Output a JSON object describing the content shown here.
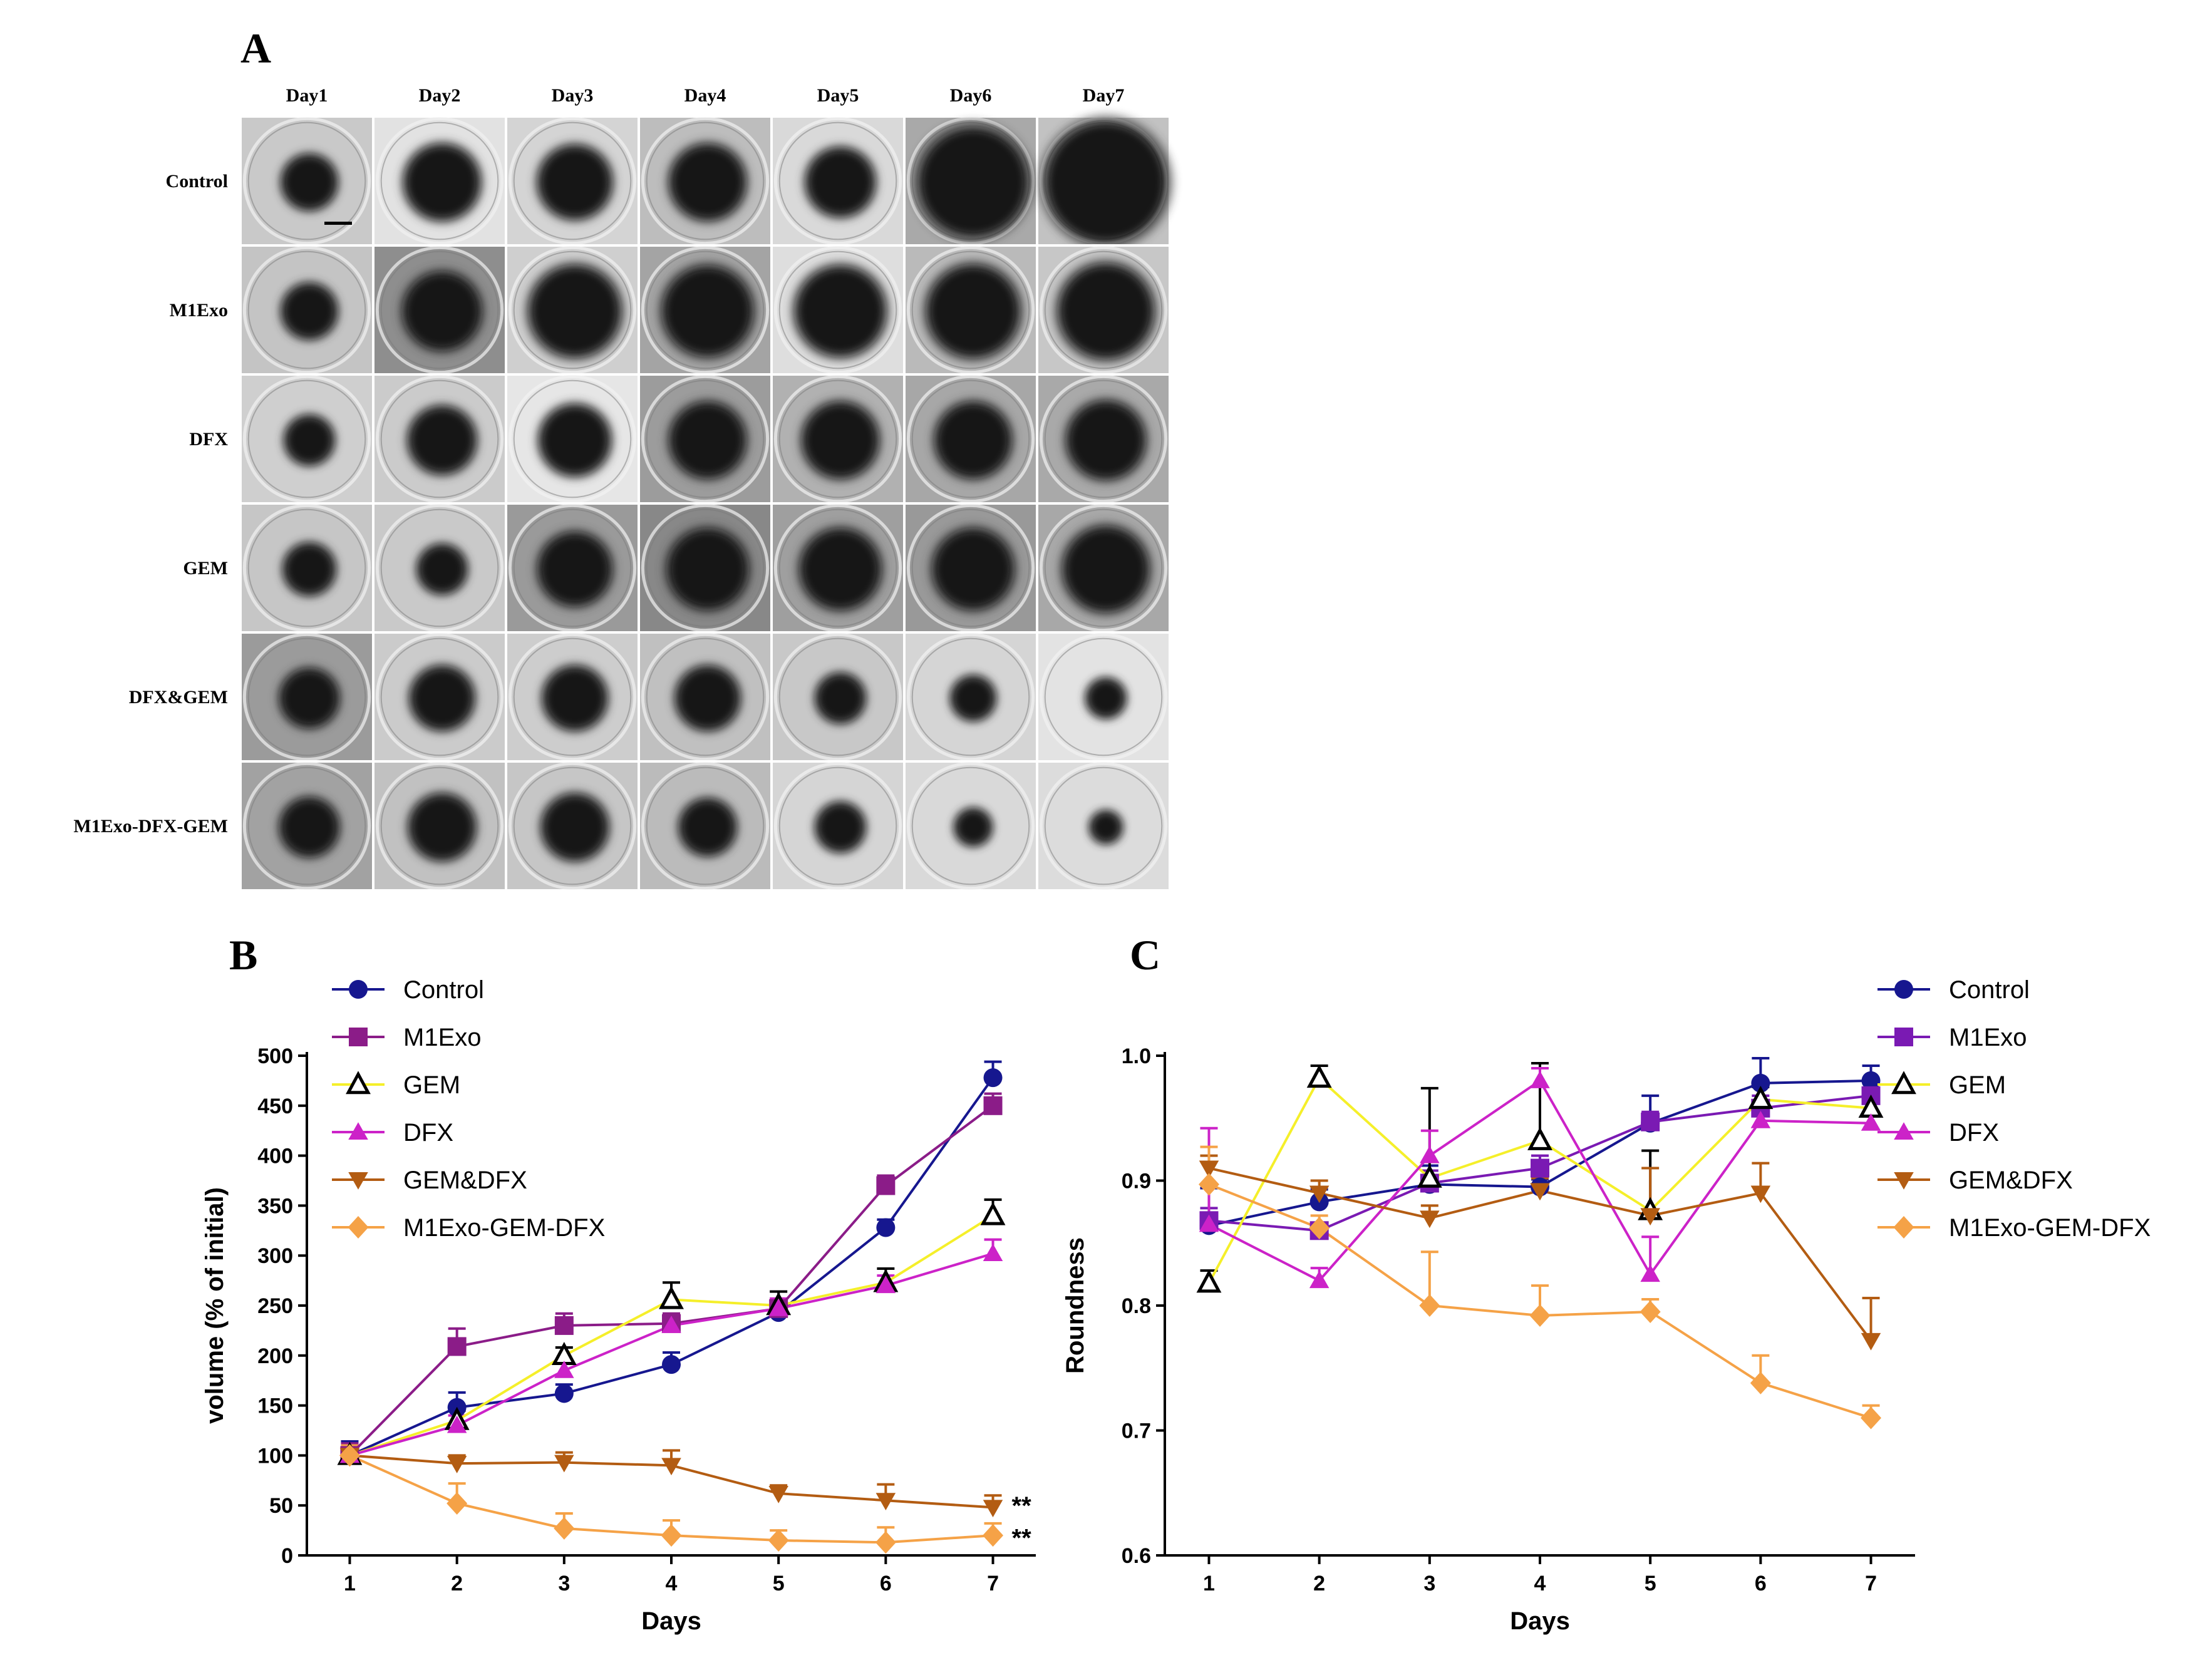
{
  "panels": {
    "a_label": "A",
    "b_label": "B",
    "c_label": "C"
  },
  "image_grid": {
    "days": [
      "Day1",
      "Day2",
      "Day3",
      "Day4",
      "Day5",
      "Day6",
      "Day7"
    ],
    "groups": [
      "Control",
      "M1Exo",
      "DFX",
      "GEM",
      "DFX&GEM",
      "M1Exo-DFX-GEM"
    ],
    "relative_spheroid_size": [
      [
        0.45,
        0.62,
        0.6,
        0.62,
        0.56,
        0.9,
        1.0
      ],
      [
        0.45,
        0.64,
        0.75,
        0.74,
        0.74,
        0.76,
        0.78
      ],
      [
        0.4,
        0.55,
        0.58,
        0.62,
        0.62,
        0.62,
        0.64
      ],
      [
        0.42,
        0.4,
        0.6,
        0.66,
        0.66,
        0.66,
        0.7
      ],
      [
        0.48,
        0.52,
        0.52,
        0.52,
        0.4,
        0.36,
        0.32
      ],
      [
        0.48,
        0.54,
        0.54,
        0.46,
        0.4,
        0.3,
        0.26
      ]
    ],
    "background_tone": [
      [
        "#c9c9c9",
        "#e2e2e2",
        "#d4d4d4",
        "#bdbdbd",
        "#d9d9d9",
        "#a9a9a9",
        "#c2c2c2"
      ],
      [
        "#c4c4c4",
        "#8e8e8e",
        "#cfcfcf",
        "#a4a4a4",
        "#dedede",
        "#bababa",
        "#c7c7c7"
      ],
      [
        "#cfcfcf",
        "#cbcbcb",
        "#e6e6e6",
        "#9c9c9c",
        "#b1b1b1",
        "#a7a7a7",
        "#a9a9a9"
      ],
      [
        "#c6c6c6",
        "#c9c9c9",
        "#9a9a9a",
        "#888888",
        "#9f9f9f",
        "#999999",
        "#a8a8a8"
      ],
      [
        "#9b9b9b",
        "#cbcbcb",
        "#cdcdcd",
        "#c0c0c0",
        "#c8c8c8",
        "#d5d5d5",
        "#e3e3e3"
      ],
      [
        "#a2a2a2",
        "#c1c1c1",
        "#c6c6c6",
        "#bbbbbb",
        "#d5d5d5",
        "#d9d9d9",
        "#dcdcdc"
      ]
    ]
  },
  "chart_data": [
    {
      "type": "line",
      "panel": "B",
      "xlabel": "Days",
      "ylabel": "volume (% of initial)",
      "x": [
        1,
        2,
        3,
        4,
        5,
        6,
        7
      ],
      "xlim": [
        0.6,
        7.4
      ],
      "ylim": [
        0,
        500
      ],
      "yticks": [
        0,
        50,
        100,
        150,
        200,
        250,
        300,
        350,
        400,
        450,
        500
      ],
      "legend_position": "top-left",
      "series": [
        {
          "name": "Control",
          "marker": "circle",
          "color": "#16178f",
          "values": [
            100,
            148,
            162,
            191,
            243,
            328,
            478
          ],
          "err": [
            14,
            15,
            9,
            12,
            6,
            8,
            16
          ]
        },
        {
          "name": "M1Exo",
          "marker": "square",
          "color": "#8b1c88",
          "values": [
            100,
            209,
            230,
            232,
            247,
            370,
            450
          ],
          "err": [
            12,
            18,
            12,
            10,
            8,
            10,
            12
          ]
        },
        {
          "name": "GEM",
          "marker": "triangle-open",
          "color": "#f5ef2a",
          "values": [
            100,
            135,
            200,
            256,
            250,
            273,
            340
          ],
          "err": [
            10,
            10,
            8,
            17,
            14,
            14,
            16
          ]
        },
        {
          "name": "DFX",
          "marker": "triangle",
          "color": "#cc22c8",
          "values": [
            100,
            130,
            185,
            230,
            247,
            270,
            302
          ],
          "err": [
            8,
            10,
            10,
            10,
            10,
            10,
            14
          ]
        },
        {
          "name": "GEM&DFX",
          "marker": "triangle-down",
          "color": "#b35c12",
          "values": [
            100,
            92,
            93,
            90,
            62,
            55,
            48
          ],
          "err": [
            8,
            8,
            10,
            15,
            8,
            16,
            12
          ]
        },
        {
          "name": "M1Exo-GEM-DFX",
          "marker": "diamond",
          "color": "#f5a247",
          "values": [
            100,
            52,
            27,
            20,
            15,
            13,
            20
          ],
          "err": [
            10,
            20,
            15,
            15,
            10,
            15,
            12
          ]
        }
      ],
      "annotations": [
        {
          "text": "**",
          "x": 7,
          "y": 50
        },
        {
          "text": "**",
          "x": 7,
          "y": 18
        }
      ]
    },
    {
      "type": "line",
      "panel": "C",
      "xlabel": "Days",
      "ylabel": "Roundness",
      "x": [
        1,
        2,
        3,
        4,
        5,
        6,
        7
      ],
      "xlim": [
        0.6,
        7.4
      ],
      "ylim": [
        0.6,
        1.0
      ],
      "yticks": [
        0.6,
        0.7,
        0.8,
        0.9,
        1.0
      ],
      "legend_position": "top-right",
      "series": [
        {
          "name": "Control",
          "marker": "circle",
          "color": "#16178f",
          "values": [
            0.864,
            0.883,
            0.897,
            0.895,
            0.946,
            0.978,
            0.98
          ],
          "err": [
            0.03,
            0.01,
            0.015,
            0.006,
            0.022,
            0.02,
            0.012
          ]
        },
        {
          "name": "M1Exo",
          "marker": "square",
          "color": "#7a1ab3",
          "values": [
            0.868,
            0.86,
            0.898,
            0.91,
            0.947,
            0.958,
            0.968
          ],
          "err": [
            0.01,
            0.005,
            0.01,
            0.01,
            0.008,
            0.01,
            0.01
          ]
        },
        {
          "name": "GEM",
          "marker": "triangle-open",
          "color": "#f5ef2a",
          "values": [
            0.818,
            0.982,
            0.902,
            0.932,
            0.876,
            0.965,
            0.958
          ],
          "err": [
            0.01,
            0.01,
            0.072,
            0.062,
            0.048,
            0.01,
            0.01
          ]
        },
        {
          "name": "DFX",
          "marker": "triangle",
          "color": "#cc22c8",
          "values": [
            0.865,
            0.82,
            0.92,
            0.98,
            0.825,
            0.948,
            0.946
          ],
          "err": [
            0.077,
            0.01,
            0.02,
            0.01,
            0.03,
            0.01,
            0.008
          ]
        },
        {
          "name": "GEM&DFX",
          "marker": "triangle-down",
          "color": "#b35c12",
          "values": [
            0.91,
            0.89,
            0.87,
            0.892,
            0.872,
            0.89,
            0.772
          ],
          "err": [
            0.01,
            0.01,
            0.01,
            0.01,
            0.038,
            0.024,
            0.034
          ]
        },
        {
          "name": "M1Exo-GEM-DFX",
          "marker": "diamond",
          "color": "#f5a247",
          "values": [
            0.897,
            0.862,
            0.8,
            0.792,
            0.795,
            0.738,
            0.71
          ],
          "err": [
            0.03,
            0.01,
            0.043,
            0.024,
            0.01,
            0.022,
            0.01
          ]
        }
      ]
    }
  ]
}
